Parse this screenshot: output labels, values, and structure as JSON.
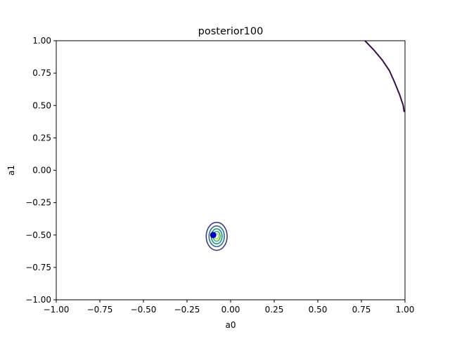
{
  "chart_data": {
    "type": "contour",
    "title": "posterior100",
    "xlabel": "a0",
    "ylabel": "a1",
    "xlim": [
      -1.0,
      1.0
    ],
    "ylim": [
      -1.0,
      1.0
    ],
    "xticks": [
      "−1.00",
      "−0.75",
      "−0.50",
      "−0.25",
      "0.00",
      "0.25",
      "0.50",
      "0.75",
      "1.00"
    ],
    "yticks": [
      "−1.00",
      "−0.75",
      "−0.50",
      "−0.25",
      "0.00",
      "0.25",
      "0.50",
      "0.75",
      "1.00"
    ],
    "grid": false,
    "contours": {
      "center": [
        -0.08,
        -0.51
      ],
      "colormap": "viridis",
      "levels": [
        {
          "rx": 0.06,
          "ry": 0.108,
          "color": "#3b3f8a"
        },
        {
          "rx": 0.044,
          "ry": 0.08,
          "color": "#2f6f8e"
        },
        {
          "rx": 0.031,
          "ry": 0.058,
          "color": "#21918c"
        },
        {
          "rx": 0.02,
          "ry": 0.038,
          "color": "#35b779"
        },
        {
          "rx": 0.01,
          "ry": 0.02,
          "color": "#b5de2b"
        }
      ]
    },
    "true_point": {
      "x": -0.1,
      "y": -0.5,
      "color": "#0000cc"
    },
    "arc": {
      "color": "#3a0d4f",
      "points": [
        [
          0.77,
          1.0
        ],
        [
          0.82,
          0.93
        ],
        [
          0.87,
          0.85
        ],
        [
          0.91,
          0.77
        ],
        [
          0.94,
          0.68
        ],
        [
          0.97,
          0.58
        ],
        [
          0.99,
          0.5
        ],
        [
          0.995,
          0.45
        ]
      ]
    }
  }
}
